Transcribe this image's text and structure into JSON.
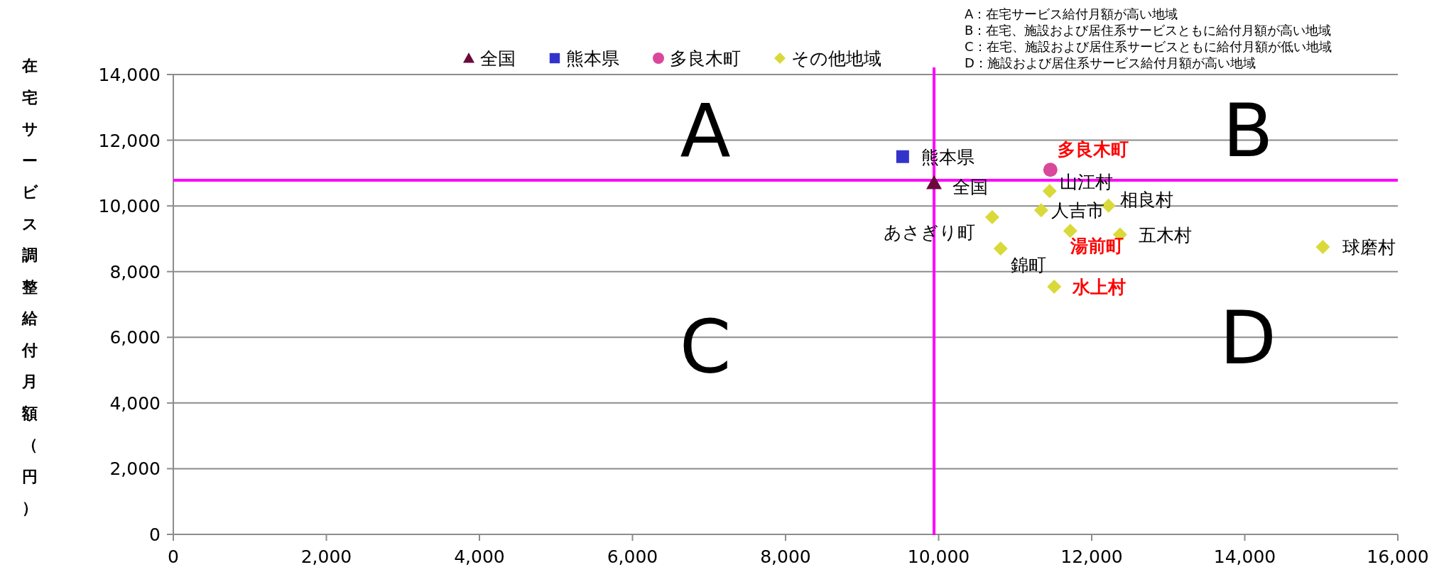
{
  "chart_data": {
    "type": "scatter",
    "ylabel": "在宅サービス調整給付月額（円）",
    "xlim": [
      0,
      16000
    ],
    "ylim": [
      0,
      14000
    ],
    "xticks": [
      0,
      {
        "value": 2000,
        "label": "2,000"
      },
      {
        "value": 4000,
        "label": "4,000"
      },
      {
        "value": 6000,
        "label": "6,000"
      },
      {
        "value": 8000,
        "label": "8,000"
      },
      {
        "value": 10000,
        "label": "10,000"
      },
      {
        "value": 12000,
        "label": "12,000"
      },
      {
        "value": 14000,
        "label": "14,000"
      },
      {
        "value": 16000,
        "label": "16,000"
      }
    ],
    "yticks": [
      0,
      {
        "value": 2000,
        "label": "2,000"
      },
      {
        "value": 4000,
        "label": "4,000"
      },
      {
        "value": 6000,
        "label": "6,000"
      },
      {
        "value": 8000,
        "label": "8,000"
      },
      {
        "value": 10000,
        "label": "10,000"
      },
      {
        "value": 12000,
        "label": "12,000"
      },
      {
        "value": 14000,
        "label": "14,000"
      }
    ],
    "grid": "y",
    "legend": "top",
    "series": [
      {
        "name": "全国",
        "color": "#6b0a3a",
        "marker": "triangle",
        "x": [
          9940
        ],
        "values": [
          10700
        ]
      },
      {
        "name": "熊本県",
        "color": "#3333cc",
        "marker": "square",
        "x": [
          9530
        ],
        "values": [
          11500
        ]
      },
      {
        "name": "多良木町",
        "color": "#d9489a",
        "marker": "circle",
        "x": [
          11460
        ],
        "values": [
          11100
        ]
      },
      {
        "name": "その他地域",
        "color": "#d9d93a",
        "marker": "diamond",
        "x": [
          11450,
          11340,
          12220,
          10700,
          11720,
          12370,
          10810,
          11510,
          15020
        ],
        "values": [
          10450,
          9870,
          10010,
          9660,
          9240,
          9130,
          8700,
          7540,
          8750
        ]
      }
    ],
    "ref_lines": [
      {
        "axis": "x",
        "value": 9940,
        "color": "#ff00ff"
      },
      {
        "axis": "y",
        "value": 10780,
        "color": "#ff00ff"
      }
    ],
    "annotations": [
      "A：在宅サービス給付月額が高い地域",
      "B：在宅、施設および居住系サービスともに給付月額が高い地域",
      "C：在宅、施設および居住系サービスともに給付月額が低い地域",
      "D：施設および居住系サービス給付月額が高い地域",
      "A",
      "B",
      "C",
      "D",
      {
        "text": "全国",
        "x": 9940,
        "y": 10700
      },
      {
        "text": "熊本県",
        "x": 9530,
        "y": 11500
      },
      {
        "text": "**多良木町**",
        "x": 11460,
        "y": 11100
      },
      {
        "text": "山江村",
        "x": 11450,
        "y": 10450
      },
      {
        "text": "人吉市",
        "x": 11340,
        "y": 9870
      },
      {
        "text": "相良村",
        "x": 12220,
        "y": 10010
      },
      {
        "text": "あさぎり町",
        "x": 10700,
        "y": 9660
      },
      {
        "text": "**湯前町**",
        "x": 11720,
        "y": 9240
      },
      {
        "text": "五木村",
        "x": 12370,
        "y": 9130
      },
      {
        "text": "錦町",
        "x": 10810,
        "y": 8700
      },
      {
        "text": "**水上村**",
        "x": 11510,
        "y": 7540
      },
      {
        "text": "球磨村",
        "x": 15020,
        "y": 8750
      }
    ]
  }
}
